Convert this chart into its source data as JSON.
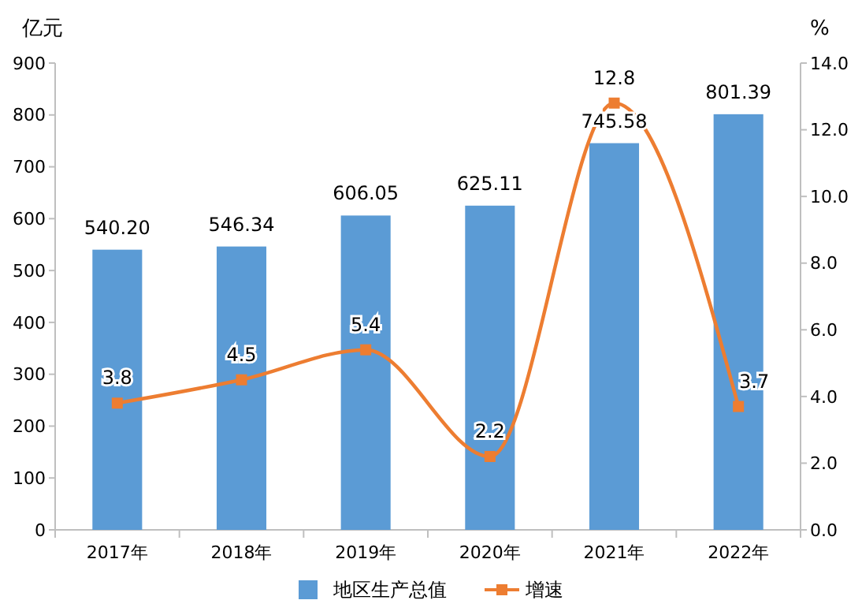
{
  "chart_data": {
    "type": "bar",
    "ylabel": "亿元",
    "y2label": "%",
    "categories": [
      "2017年",
      "2018年",
      "2019年",
      "2020年",
      "2021年",
      "2022年"
    ],
    "series": [
      {
        "name": "地区生产总值",
        "color": "#5b9bd5",
        "values": [
          540.2,
          546.34,
          606.05,
          625.11,
          745.58,
          801.39
        ],
        "value_labels": [
          "540.20",
          "546.34",
          "606.05",
          "625.11",
          "745.58",
          "801.39"
        ]
      },
      {
        "name": "增速",
        "type": "line",
        "axis": "y2",
        "color": "#ed7d31",
        "marker": "square",
        "values": [
          3.8,
          4.5,
          5.4,
          2.2,
          12.8,
          3.7
        ],
        "value_labels": [
          "3.8",
          "4.5",
          "5.4",
          "2.2",
          "12.8",
          "3.7"
        ]
      }
    ],
    "ylim": [
      0,
      900
    ],
    "yticks": [
      0,
      100,
      200,
      300,
      400,
      500,
      600,
      700,
      800,
      900
    ],
    "y2lim": [
      0,
      14
    ],
    "y2ticks": [
      {
        "value": 0,
        "label": "0.0"
      },
      {
        "value": 2,
        "label": "2.0"
      },
      {
        "value": 4,
        "label": "4.0"
      },
      {
        "value": 6,
        "label": "6.0"
      },
      {
        "value": 8,
        "label": "8.0"
      },
      {
        "value": 10,
        "label": "10.0"
      },
      {
        "value": 12,
        "label": "12.0"
      },
      {
        "value": 14,
        "label": "14.0"
      }
    ],
    "grid": false,
    "legend": "bottom"
  }
}
